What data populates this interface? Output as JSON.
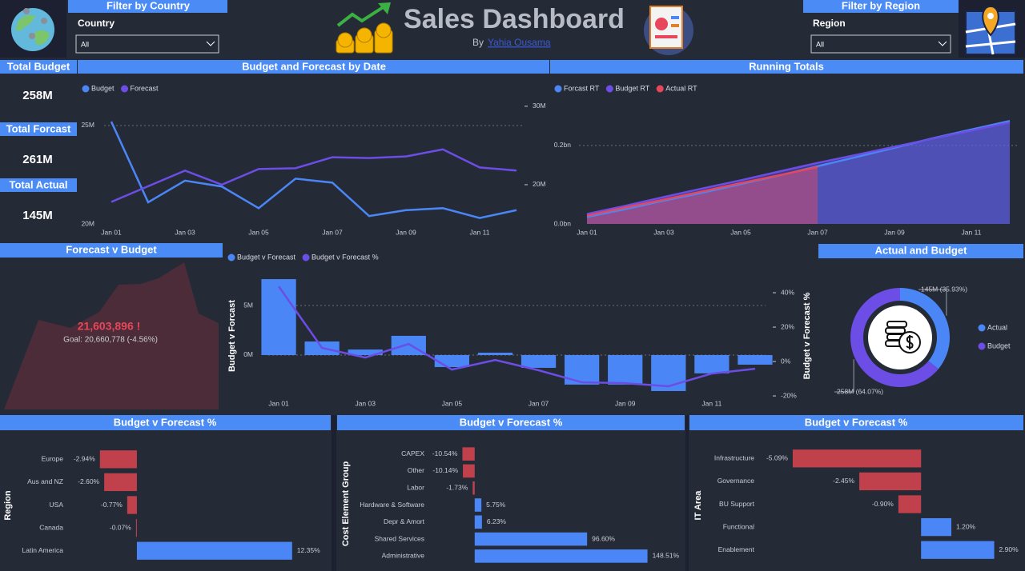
{
  "header": {
    "title": "Sales Dashboard",
    "byline": "By",
    "author": "Yahia Ousama"
  },
  "filters": [
    {
      "title": "Filter by Country",
      "label": "Country",
      "value": "All"
    },
    {
      "title": "Filter by Region",
      "label": "Region",
      "value": "All"
    }
  ],
  "kpis": [
    {
      "title": "Total Budget",
      "value": "258M"
    },
    {
      "title": "Total Forcast",
      "value": "261M"
    },
    {
      "title": "Total Actual",
      "value": "145M"
    }
  ],
  "kpi_forecast": {
    "title": "Forecast v Budget",
    "value": "21,603,896 !",
    "goal": "Goal: 20,660,778 (-4.56%)"
  },
  "chart_data": [
    {
      "type": "line",
      "title": "Budget and Forecast by Date",
      "categories": [
        "Jan 01",
        null,
        "Jan 03",
        null,
        "Jan 05",
        null,
        "Jan 07",
        null,
        "Jan 09",
        null,
        "Jan 11",
        null
      ],
      "series": [
        {
          "name": "Budget",
          "color": "#4a86f5",
          "values": [
            25200000,
            21100000,
            22200000,
            21900000,
            20800000,
            22300000,
            22100000,
            20400000,
            20700000,
            20800000,
            20300000,
            20700000
          ]
        },
        {
          "name": "Forecast",
          "color": "#6c4de6",
          "axis": "y2",
          "values": [
            17800000,
            19800000,
            21800000,
            20000000,
            22000000,
            22100000,
            23500000,
            23400000,
            23600000,
            24500000,
            22200000,
            21800000
          ]
        }
      ],
      "ylim": [
        20000000,
        26300000
      ],
      "yticks": [
        {
          "value": 20000000,
          "label": "20M"
        },
        {
          "value": 25000000,
          "label": "25M"
        }
      ],
      "y2lim": [
        15000000,
        30800000
      ],
      "y2ticks": [
        {
          "value": 20000000,
          "label": "20M"
        },
        {
          "value": 30000000,
          "label": "30M"
        }
      ],
      "grid": true,
      "legend": "top-left"
    },
    {
      "type": "area",
      "title": "Running Totals",
      "categories": [
        "Jan 01",
        null,
        "Jan 03",
        null,
        "Jan 05",
        null,
        "Jan 07",
        null,
        "Jan 09",
        null,
        "Jan 11",
        null
      ],
      "series": [
        {
          "name": "Forcast RT",
          "color": "#4a86f5",
          "values": [
            17800000,
            37600000,
            59400000,
            79400000,
            101400000,
            123500000,
            147000000,
            170400000,
            194000000,
            218500000,
            240700000,
            262500000
          ]
        },
        {
          "name": "Budget RT",
          "color": "#6c4de6",
          "values": [
            25200000,
            46300000,
            68500000,
            90400000,
            111200000,
            133500000,
            155600000,
            176000000,
            196700000,
            217500000,
            237800000,
            258500000
          ]
        },
        {
          "name": "Actual RT",
          "color": "#e8465a",
          "values": [
            21000000,
            42000000,
            62000000,
            83000000,
            104000000,
            124000000,
            145000000,
            null,
            null,
            null,
            null,
            null
          ]
        }
      ],
      "ylim": [
        0,
        316000000
      ],
      "yticks": [
        {
          "value": 0,
          "label": "0.0bn"
        },
        {
          "value": 200000000,
          "label": "0.2bn"
        }
      ],
      "grid": true,
      "legend": "top-left"
    },
    {
      "type": "combo",
      "categories": [
        "Jan 01",
        null,
        "Jan 03",
        null,
        "Jan 05",
        null,
        "Jan 07",
        null,
        "Jan 09",
        null,
        "Jan 11",
        null
      ],
      "series": [
        {
          "name": "Budget v Forecast",
          "type": "bar",
          "color": "#4a86f5",
          "values": [
            7660000,
            1370000,
            560000,
            1940000,
            -1210000,
            240000,
            -1290000,
            -2980000,
            -2980000,
            -3630000,
            -1850000,
            -970000
          ]
        },
        {
          "name": "Budget v Forecast %",
          "type": "line",
          "axis": "y2",
          "color": "#6c4de6",
          "values": [
            43.7,
            7.9,
            2.3,
            10.2,
            -4.7,
            0.9,
            -5.1,
            -12.1,
            -12.6,
            -14.4,
            -7.0,
            -4.2
          ]
        }
      ],
      "ylabel": "Budget v Forcast",
      "y2label": "Budget v Forecast %",
      "ylim": [
        -4520000,
        8390000
      ],
      "yticks": [
        {
          "value": 0,
          "label": "0M"
        },
        {
          "value": 5000000,
          "label": "5M"
        }
      ],
      "y2lim": [
        -22.3,
        52.1
      ],
      "y2ticks": [
        {
          "value": -20,
          "label": "-20%"
        },
        {
          "value": 0,
          "label": "0%"
        },
        {
          "value": 20,
          "label": "20%"
        },
        {
          "value": 40,
          "label": "40%"
        }
      ],
      "grid": true,
      "legend": "top-left"
    },
    {
      "type": "donut",
      "title": "Actual and Budget",
      "categories": [
        "Actual",
        "Budget"
      ],
      "values": [
        145000000,
        258000000
      ],
      "value_labels": [
        "145M (35.93%)",
        "258M (64.07%)"
      ],
      "colors": [
        "#4a86f5",
        "#6c4de6"
      ],
      "legend": "right"
    },
    {
      "type": "hbar",
      "title": "Budget v Forecast %",
      "ylabel": "Region",
      "categories": [
        "Europe",
        "Aus and NZ",
        "USA",
        "Canada",
        "Latin America"
      ],
      "values": [
        -2.94,
        -2.6,
        -0.77,
        -0.07,
        12.35
      ],
      "value_labels": [
        "-2.94%",
        "-2.60%",
        "-0.77%",
        "-0.07%",
        "12.35%"
      ],
      "xlim": [
        -3.5,
        13
      ],
      "color": "#4a86f5",
      "negative_color": "#c0404c"
    },
    {
      "type": "hbar",
      "title": "Budget v Forecast %",
      "ylabel": "Cost Element Group",
      "categories": [
        "CAPEX",
        "Other",
        "Labor",
        "Hardware & Software",
        "Depr & Amort",
        "Shared Services",
        "Administrative"
      ],
      "values": [
        -10.54,
        -10.14,
        -1.73,
        5.75,
        6.23,
        96.6,
        148.51
      ],
      "value_labels": [
        "-10.54%",
        "-10.14%",
        "-1.73%",
        "5.75%",
        "6.23%",
        "96.60%",
        "148.51%"
      ],
      "xlim": [
        -15,
        155
      ],
      "color": "#4a86f5",
      "negative_color": "#c0404c"
    },
    {
      "type": "hbar",
      "title": "Budget v Forecast %",
      "ylabel": "IT Area",
      "categories": [
        "Infrastructure",
        "Governance",
        "BU Support",
        "Functional",
        "Enablement"
      ],
      "values": [
        -5.09,
        -2.45,
        -0.9,
        1.2,
        2.9
      ],
      "value_labels": [
        "-5.09%",
        "-2.45%",
        "-0.90%",
        "1.20%",
        "2.90%"
      ],
      "xlim": [
        -5.5,
        3.2
      ],
      "color": "#4a86f5",
      "negative_color": "#c0404c"
    }
  ]
}
